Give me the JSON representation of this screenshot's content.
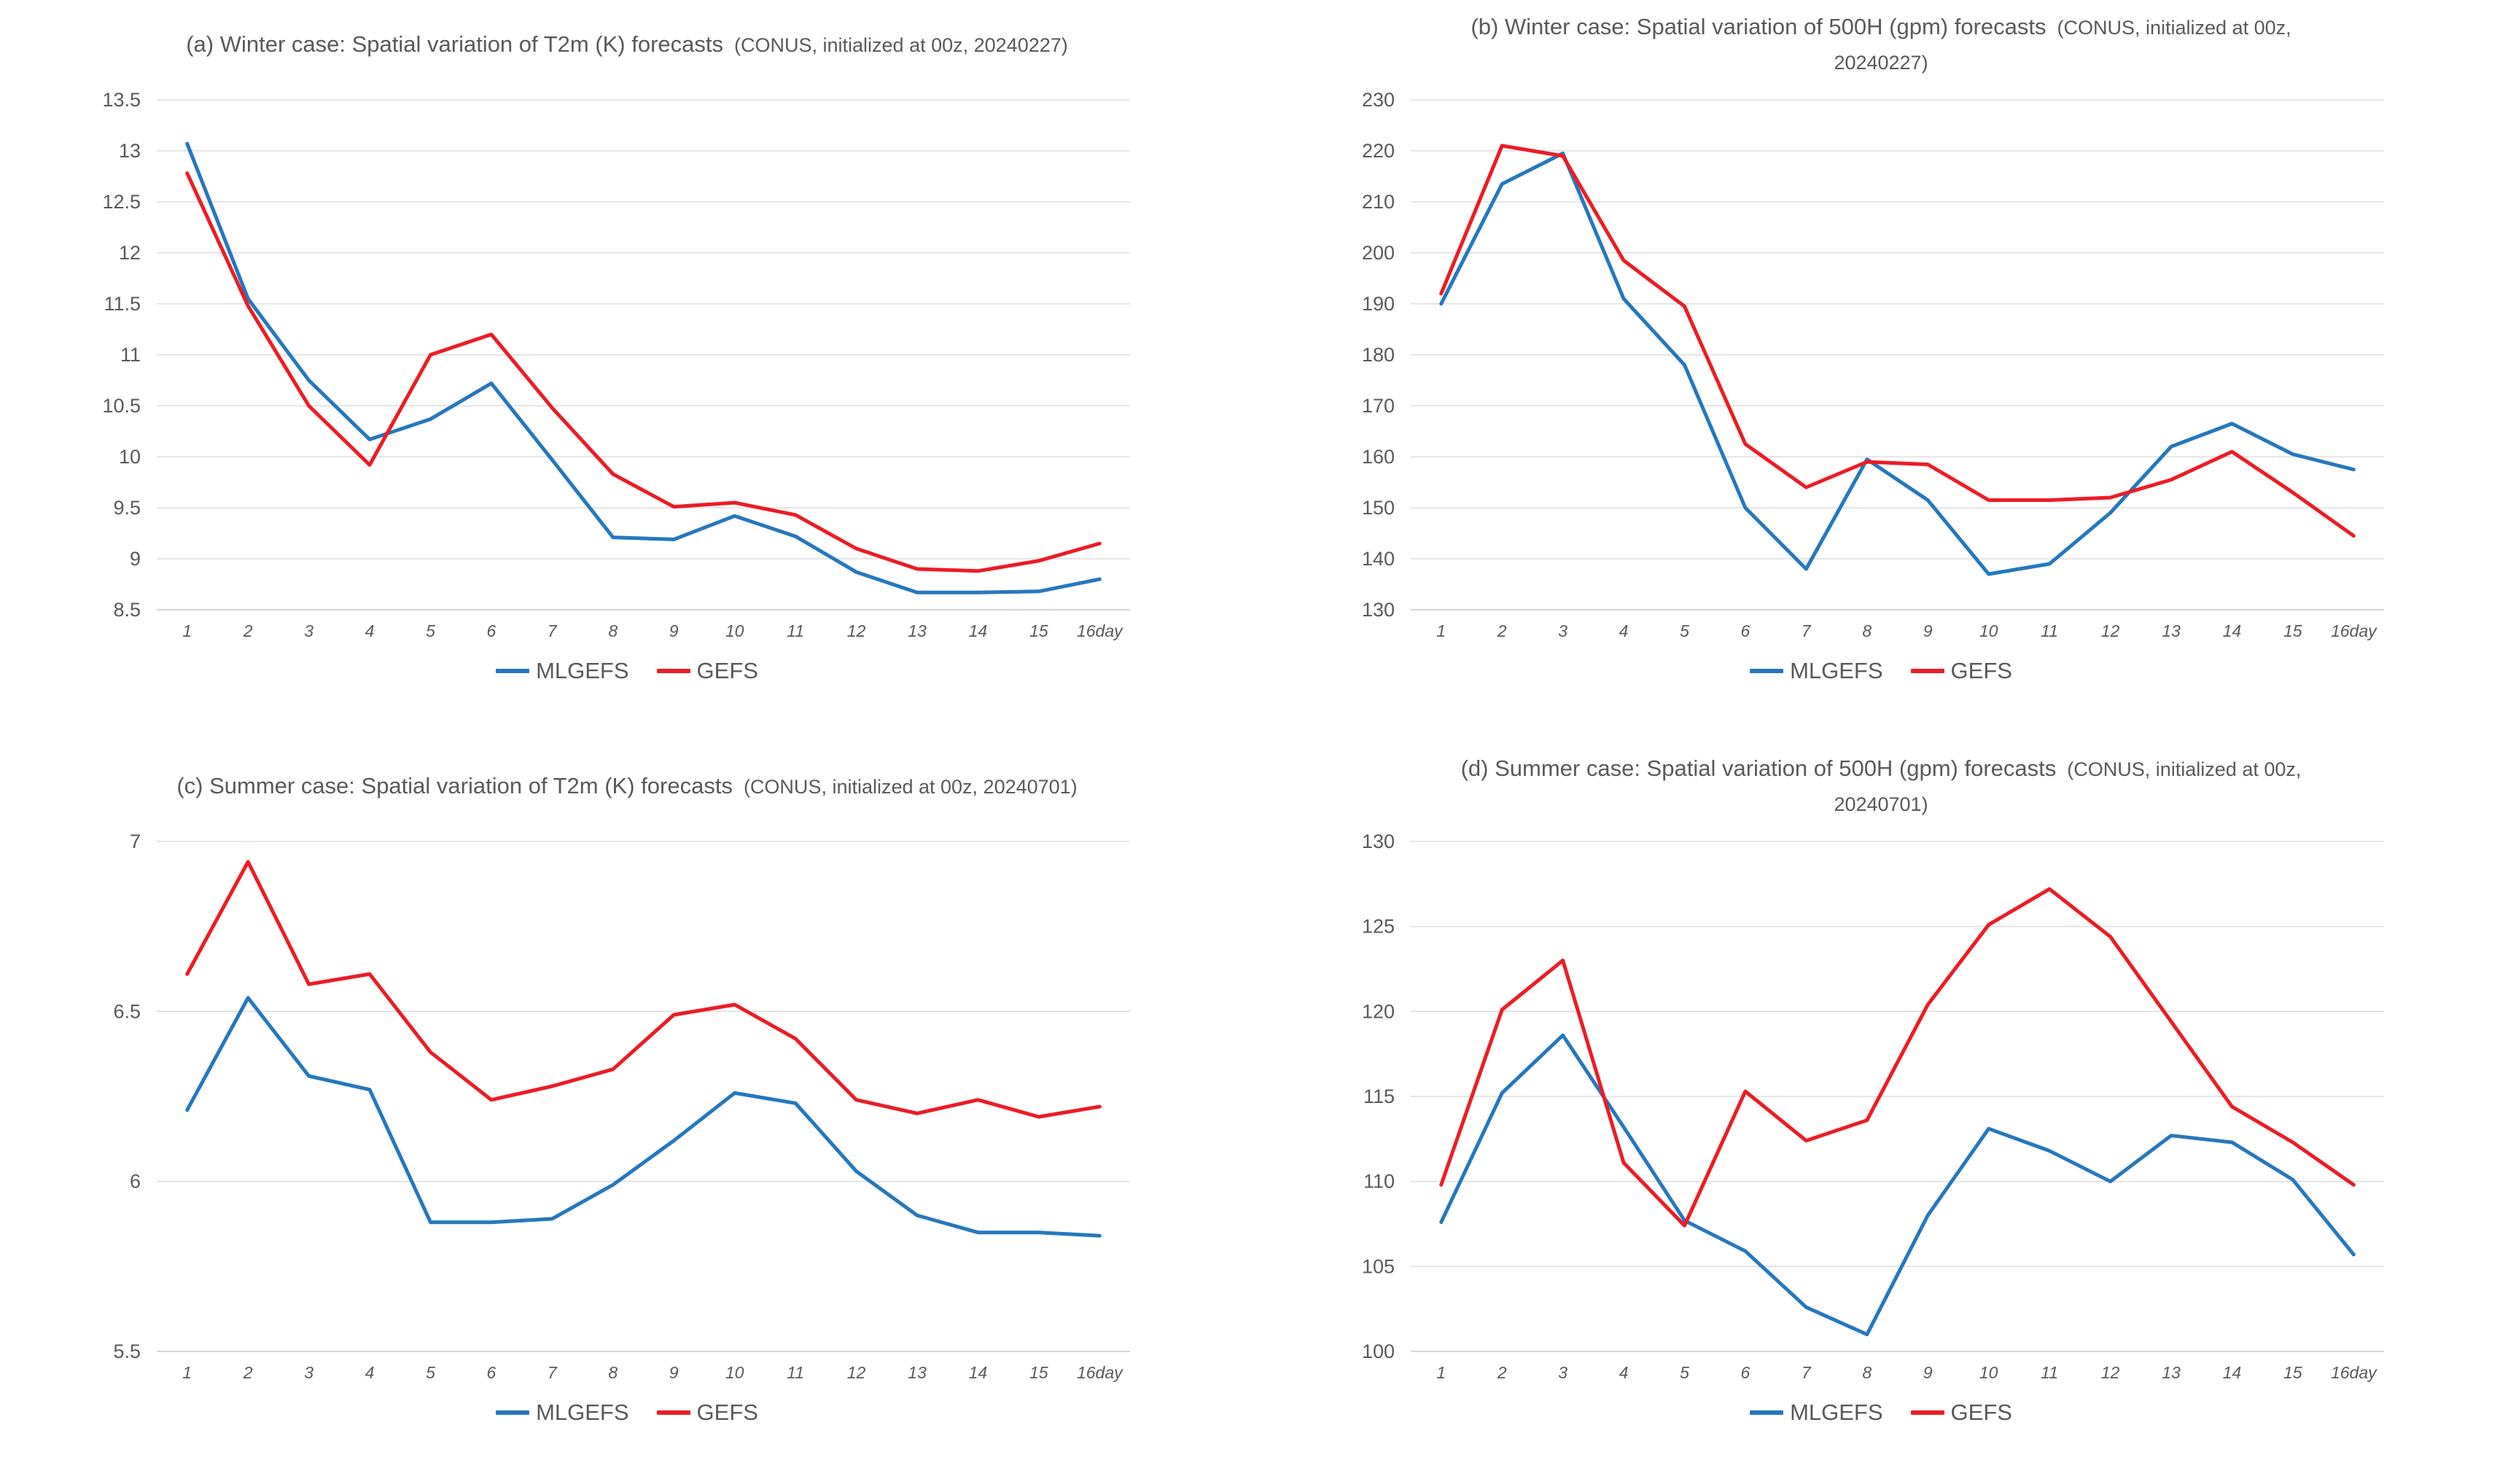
{
  "colors": {
    "mlgefs": "#2478be",
    "gefs": "#ec1c24",
    "text": "#595959",
    "gridline": "#dedede",
    "axisline": "#c8c8c8",
    "background": "#ffffff"
  },
  "legend": {
    "items": [
      {
        "label": "MLGEFS",
        "series": "mlgefs"
      },
      {
        "label": "GEFS",
        "series": "gefs"
      }
    ]
  },
  "chart_data": [
    {
      "id": "a",
      "type": "line",
      "title_lines": [
        [
          {
            "text": "(a) Winter case: Spatial variation of T2m (K) forecasts",
            "small": false
          },
          {
            "text": "  (CONUS, initialized at 00z, 20240227)",
            "small": true
          }
        ]
      ],
      "xlabel": "",
      "ylabel": "",
      "ylim": [
        8.5,
        13.5
      ],
      "y_ticks": [
        "13.5",
        "13",
        "12.5",
        "12",
        "11.5",
        "11",
        "10.5",
        "10",
        "9.5",
        "9",
        "8.5"
      ],
      "x_labels": [
        "1",
        "2",
        "3",
        "4",
        "5",
        "6",
        "7",
        "8",
        "9",
        "10",
        "11",
        "12",
        "13",
        "14",
        "15",
        "16day"
      ],
      "grid": true,
      "legend_position": "bottom",
      "series": [
        {
          "name": "MLGEFS",
          "color_key": "mlgefs",
          "values": [
            13.07,
            11.55,
            10.75,
            10.17,
            10.37,
            10.72,
            9.97,
            9.21,
            9.19,
            9.42,
            9.22,
            8.87,
            8.67,
            8.67,
            8.68,
            8.8
          ]
        },
        {
          "name": "GEFS",
          "color_key": "gefs",
          "values": [
            12.78,
            11.48,
            10.5,
            9.92,
            11.0,
            11.2,
            10.48,
            9.83,
            9.51,
            9.55,
            9.43,
            9.1,
            8.9,
            8.88,
            8.98,
            9.15
          ]
        }
      ]
    },
    {
      "id": "b",
      "type": "line",
      "title_lines": [
        [
          {
            "text": "(b) Winter case: Spatial variation of 500H (gpm) forecasts",
            "small": false
          },
          {
            "text": "  (CONUS, initialized at 00z,",
            "small": true
          }
        ],
        [
          {
            "text": "20240227)",
            "small": true
          }
        ]
      ],
      "xlabel": "",
      "ylabel": "",
      "ylim": [
        130,
        230
      ],
      "y_ticks": [
        "230",
        "220",
        "210",
        "200",
        "190",
        "180",
        "170",
        "160",
        "150",
        "140",
        "130"
      ],
      "x_labels": [
        "1",
        "2",
        "3",
        "4",
        "5",
        "6",
        "7",
        "8",
        "9",
        "10",
        "11",
        "12",
        "13",
        "14",
        "15",
        "16day"
      ],
      "grid": true,
      "legend_position": "bottom",
      "series": [
        {
          "name": "MLGEFS",
          "color_key": "mlgefs",
          "values": [
            190,
            213.5,
            219.5,
            191,
            178,
            150,
            138,
            159.5,
            151.5,
            137,
            139,
            149,
            162,
            166.5,
            160.5,
            157.5
          ]
        },
        {
          "name": "GEFS",
          "color_key": "gefs",
          "values": [
            192,
            221,
            219,
            198.5,
            189.5,
            162.5,
            154,
            159,
            158.5,
            151.5,
            151.5,
            152,
            155.5,
            161,
            153,
            144.5
          ]
        }
      ]
    },
    {
      "id": "c",
      "type": "line",
      "title_lines": [
        [
          {
            "text": "(c) Summer case: Spatial variation of T2m (K) forecasts",
            "small": false
          },
          {
            "text": "  (CONUS, initialized at 00z, 20240701)",
            "small": true
          }
        ]
      ],
      "xlabel": "",
      "ylabel": "",
      "ylim": [
        5.5,
        7
      ],
      "y_ticks": [
        "7",
        "6.5",
        "6",
        "5.5"
      ],
      "x_labels": [
        "1",
        "2",
        "3",
        "4",
        "5",
        "6",
        "7",
        "8",
        "9",
        "10",
        "11",
        "12",
        "13",
        "14",
        "15",
        "16day"
      ],
      "grid": true,
      "legend_position": "bottom",
      "series": [
        {
          "name": "MLGEFS",
          "color_key": "mlgefs",
          "values": [
            6.21,
            6.54,
            6.31,
            6.27,
            5.88,
            5.88,
            5.89,
            5.99,
            6.12,
            6.26,
            6.23,
            6.03,
            5.9,
            5.85,
            5.85,
            5.84
          ]
        },
        {
          "name": "GEFS",
          "color_key": "gefs",
          "values": [
            6.61,
            6.94,
            6.58,
            6.61,
            6.38,
            6.24,
            6.28,
            6.33,
            6.49,
            6.52,
            6.42,
            6.24,
            6.2,
            6.24,
            6.19,
            6.22
          ]
        }
      ]
    },
    {
      "id": "d",
      "type": "line",
      "title_lines": [
        [
          {
            "text": "(d) Summer case: Spatial variation of 500H (gpm) forecasts",
            "small": false
          },
          {
            "text": "  (CONUS, initialized at 00z,",
            "small": true
          }
        ],
        [
          {
            "text": "20240701)",
            "small": true
          }
        ]
      ],
      "xlabel": "",
      "ylabel": "",
      "ylim": [
        100,
        130
      ],
      "y_ticks": [
        "130",
        "125",
        "120",
        "115",
        "110",
        "105",
        "100"
      ],
      "x_labels": [
        "1",
        "2",
        "3",
        "4",
        "5",
        "6",
        "7",
        "8",
        "9",
        "10",
        "11",
        "12",
        "13",
        "14",
        "15",
        "16day"
      ],
      "grid": true,
      "legend_position": "bottom",
      "series": [
        {
          "name": "MLGEFS",
          "color_key": "mlgefs",
          "values": [
            107.6,
            115.2,
            118.6,
            113.2,
            107.7,
            105.9,
            102.6,
            101.0,
            108.0,
            113.1,
            111.8,
            110.0,
            112.7,
            112.3,
            110.1,
            105.7
          ]
        },
        {
          "name": "GEFS",
          "color_key": "gefs",
          "values": [
            109.8,
            120.1,
            123.0,
            111.1,
            107.4,
            115.3,
            112.4,
            113.6,
            120.4,
            125.1,
            127.2,
            124.4,
            119.4,
            114.4,
            112.3,
            109.8
          ]
        }
      ]
    }
  ]
}
